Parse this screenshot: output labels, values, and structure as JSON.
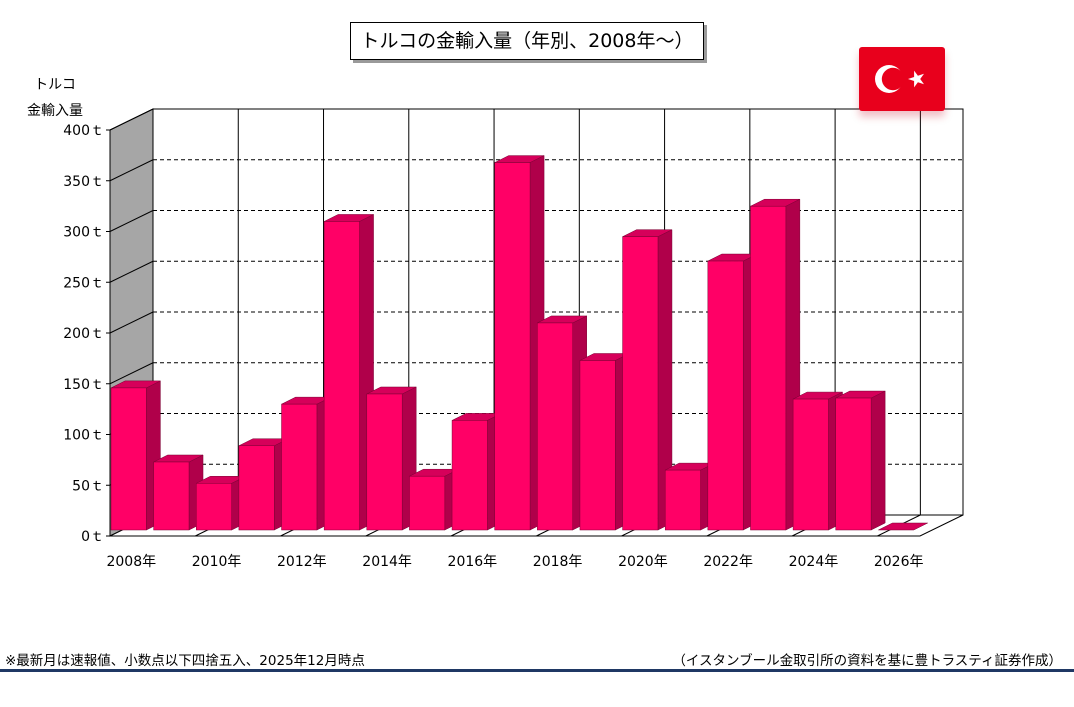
{
  "chart_data": {
    "type": "bar",
    "title": "トルコの金輸入量（年別、2008年～）",
    "ylabel_lines": [
      "トルコ",
      "金輸入量"
    ],
    "y_unit": "トン",
    "ylim": [
      0,
      400
    ],
    "y_ticks": [
      "0ｔ",
      "50ｔ",
      "100ｔ",
      "150ｔ",
      "200ｔ",
      "250ｔ",
      "300ｔ",
      "350ｔ",
      "400ｔ"
    ],
    "y_tick_values": [
      0,
      50,
      100,
      150,
      200,
      250,
      300,
      350,
      400
    ],
    "categories": [
      "2008",
      "2009",
      "2010",
      "2011",
      "2012",
      "2013",
      "2014",
      "2015",
      "2016",
      "2017",
      "2018",
      "2019",
      "2020",
      "2021",
      "2022",
      "2023",
      "2024",
      "2025",
      "2026"
    ],
    "values": [
      140,
      67,
      46,
      83,
      124,
      304,
      134,
      53,
      108,
      362,
      204,
      167,
      289,
      59,
      265,
      319,
      129,
      130,
      0
    ],
    "x_tick_labels": [
      "2008年",
      "2010年",
      "2012年",
      "2014年",
      "2016年",
      "2018年",
      "2020年",
      "2022年",
      "2024年",
      "2026年"
    ],
    "x_tick_years": [
      "2008",
      "2010",
      "2012",
      "2014",
      "2016",
      "2018",
      "2020",
      "2022",
      "2024",
      "2026"
    ],
    "grid": true,
    "bar_color": "#ff0066",
    "bar_side_color": "#b0004a",
    "bar_top_color": "#d6005a"
  },
  "flag": {
    "icon": "turkey-flag-icon",
    "color": "#e8001c"
  },
  "footer": {
    "note": "※最新月は速報値、小数点以下四捨五入、2025年12月時点",
    "source": "（イスタンブール金取引所の資料を基に豊トラスティ証券作成）"
  }
}
